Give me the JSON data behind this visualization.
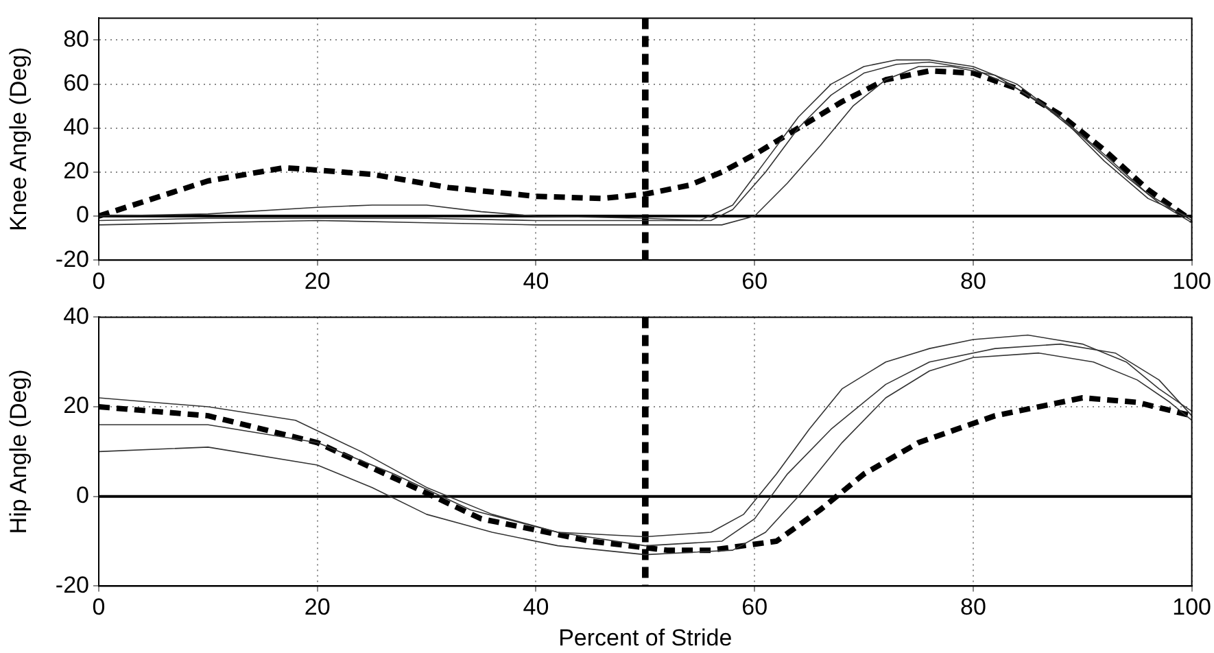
{
  "chart_data": [
    {
      "type": "line",
      "ylabel": "Knee Angle (Deg)",
      "xlim": [
        0,
        100
      ],
      "xticks": [
        0,
        20,
        40,
        60,
        80,
        100
      ],
      "ylim": [
        -20,
        90
      ],
      "yticks": [
        -20,
        0,
        20,
        40,
        60,
        80
      ],
      "grid": true,
      "legend": false,
      "marker": "none",
      "ref_lines": [
        {
          "axis": "y",
          "value": 0,
          "line_style": "solid",
          "color": "#000000"
        },
        {
          "axis": "x",
          "value": 50,
          "line_style": "dashed",
          "color": "#000000"
        }
      ],
      "series": [
        {
          "color": "#333333",
          "line_style": "solid",
          "x": [
            0,
            10,
            20,
            25,
            30,
            35,
            40,
            50,
            55,
            58,
            61,
            64,
            67,
            70,
            73,
            76,
            80,
            84,
            88,
            92,
            96,
            100
          ],
          "values": [
            0,
            1,
            4,
            5,
            5,
            2,
            0,
            -1,
            -2,
            5,
            25,
            45,
            60,
            68,
            71,
            71,
            68,
            60,
            45,
            25,
            8,
            -1
          ]
        },
        {
          "color": "#333333",
          "line_style": "solid",
          "x": [
            0,
            10,
            20,
            30,
            40,
            50,
            56,
            58,
            61,
            64,
            67,
            70,
            73,
            76,
            80,
            84,
            88,
            92,
            96,
            100
          ],
          "values": [
            -2,
            -1,
            -1,
            -1,
            -2,
            -2,
            -2,
            3,
            20,
            40,
            55,
            65,
            69,
            70,
            67,
            58,
            45,
            28,
            10,
            -2
          ]
        },
        {
          "color": "#333333",
          "line_style": "solid",
          "x": [
            0,
            10,
            20,
            30,
            40,
            50,
            57,
            60,
            63,
            66,
            69,
            72,
            75,
            78,
            82,
            86,
            90,
            94,
            97,
            100
          ],
          "values": [
            -4,
            -3,
            -2,
            -3,
            -4,
            -4,
            -4,
            0,
            15,
            32,
            50,
            62,
            68,
            68,
            64,
            52,
            36,
            18,
            6,
            -3
          ]
        },
        {
          "color": "#000000",
          "line_style": "dashed",
          "x": [
            0,
            5,
            10,
            17,
            25,
            32,
            40,
            46,
            50,
            54,
            57,
            60,
            64,
            68,
            72,
            76,
            80,
            84,
            88,
            92,
            96,
            100
          ],
          "values": [
            0,
            8,
            16,
            22,
            19,
            13,
            9,
            8,
            10,
            14,
            20,
            28,
            40,
            52,
            62,
            66,
            65,
            58,
            46,
            30,
            12,
            -2
          ]
        }
      ]
    },
    {
      "type": "line",
      "xlabel": "Percent of Stride",
      "ylabel": "Hip Angle (Deg)",
      "xlim": [
        0,
        100
      ],
      "xticks": [
        0,
        20,
        40,
        60,
        80,
        100
      ],
      "ylim": [
        -20,
        40
      ],
      "yticks": [
        -20,
        0,
        20,
        40
      ],
      "grid": true,
      "legend": false,
      "marker": "none",
      "ref_lines": [
        {
          "axis": "y",
          "value": 0,
          "line_style": "solid",
          "color": "#000000"
        },
        {
          "axis": "x",
          "value": 50,
          "line_style": "dashed",
          "color": "#000000"
        }
      ],
      "series": [
        {
          "color": "#333333",
          "line_style": "solid",
          "x": [
            0,
            10,
            18,
            24,
            30,
            36,
            42,
            50,
            56,
            59,
            62,
            65,
            68,
            72,
            76,
            80,
            85,
            90,
            94,
            97,
            100
          ],
          "values": [
            22,
            20,
            17,
            10,
            2,
            -4,
            -8,
            -9,
            -8,
            -4,
            5,
            15,
            24,
            30,
            33,
            35,
            36,
            34,
            30,
            24,
            19
          ]
        },
        {
          "color": "#333333",
          "line_style": "solid",
          "x": [
            0,
            10,
            20,
            27,
            34,
            42,
            50,
            57,
            60,
            63,
            67,
            72,
            76,
            82,
            88,
            93,
            97,
            100
          ],
          "values": [
            16,
            16,
            12,
            5,
            -3,
            -8,
            -11,
            -10,
            -5,
            5,
            15,
            25,
            30,
            33,
            34,
            32,
            26,
            18
          ]
        },
        {
          "color": "#333333",
          "line_style": "solid",
          "x": [
            0,
            10,
            20,
            25,
            30,
            36,
            42,
            50,
            58,
            61,
            64,
            68,
            72,
            76,
            80,
            86,
            91,
            95,
            98,
            100
          ],
          "values": [
            10,
            11,
            7,
            2,
            -4,
            -8,
            -11,
            -13,
            -12,
            -8,
            0,
            12,
            22,
            28,
            31,
            32,
            30,
            26,
            21,
            17
          ]
        },
        {
          "color": "#000000",
          "line_style": "dashed",
          "x": [
            0,
            10,
            20,
            28,
            35,
            45,
            52,
            56,
            62,
            66,
            70,
            75,
            82,
            90,
            95,
            100
          ],
          "values": [
            20,
            18,
            12,
            3,
            -5,
            -10,
            -12,
            -12,
            -10,
            -3,
            5,
            12,
            18,
            22,
            21,
            18
          ]
        }
      ]
    }
  ]
}
